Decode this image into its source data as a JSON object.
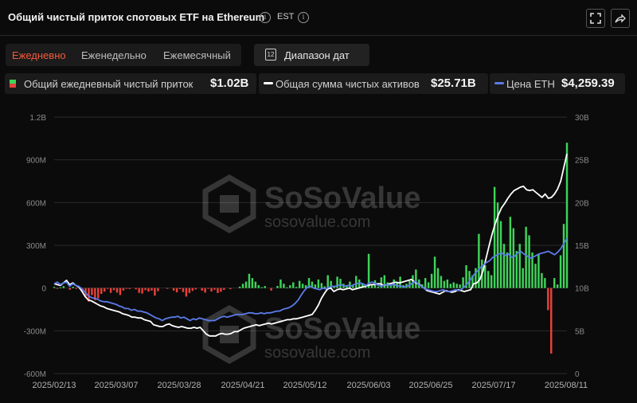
{
  "header": {
    "title": "Общий чистый приток спотовых ETF на Ethereum",
    "timezone": "EST",
    "info_icon": "info-icon",
    "fullscreen_icon": "fullscreen-icon",
    "share_icon": "share-icon"
  },
  "tabs": [
    {
      "label": "Ежедневно",
      "active": true
    },
    {
      "label": "Еженедельно",
      "active": false
    },
    {
      "label": "Ежемесячный",
      "active": false
    }
  ],
  "date_range": {
    "label": "Диапазон дат",
    "icon": "calendar-icon",
    "icon_text": "12"
  },
  "legend": [
    {
      "label": "Общий ежедневный чистый приток",
      "value": "$1.02B",
      "marker": "bar"
    },
    {
      "label": "Общая сумма чистых активов",
      "value": "$25.71B",
      "marker": "line",
      "color": "#ffffff"
    },
    {
      "label": "Цена ETH",
      "value": "$4,259.39",
      "marker": "line",
      "color": "#5b7be8"
    }
  ],
  "colors": {
    "positive": "#3fd35a",
    "negative": "#e8413b",
    "assets": "#ffffff",
    "price": "#5b7be8",
    "grid": "#2b2b2b"
  },
  "watermark": {
    "brand": "SoSoValue",
    "url": "sosovalue.com"
  },
  "chart_data": {
    "type": "bar",
    "x_tick_labels": [
      "2025/02/13",
      "2025/03/07",
      "2025/03/28",
      "2025/04/21",
      "2025/05/12",
      "2025/06/03",
      "2025/06/25",
      "2025/07/17",
      "2025/08/11"
    ],
    "y_left_ticks": [
      "1.2B",
      "900M",
      "600M",
      "300M",
      "0",
      "-300M",
      "-600M"
    ],
    "y_right_ticks": [
      "30B",
      "25B",
      "20B",
      "15B",
      "10B",
      "5B",
      "0"
    ],
    "ylim_left": [
      -600,
      1200
    ],
    "ylim_right": [
      0,
      30
    ],
    "units_left": "M USD",
    "units_right": "B USD",
    "series": [
      {
        "name": "Общий ежедневный чистый приток",
        "kind": "bar",
        "values": [
          8,
          -3,
          5,
          14,
          0,
          -12,
          9,
          -5,
          0,
          -27,
          -63,
          -95,
          -50,
          -85,
          -72,
          -41,
          -25,
          -5,
          -34,
          -15,
          -32,
          -49,
          -18,
          -5,
          -7,
          0,
          -9,
          -34,
          -39,
          -15,
          -25,
          -18,
          -53,
          -22,
          0,
          0,
          -4,
          0,
          -18,
          -30,
          -8,
          -28,
          -60,
          -35,
          -20,
          -10,
          0,
          -18,
          -32,
          -5,
          -24,
          -12,
          -35,
          -26,
          -13,
          0,
          -8,
          0,
          0,
          10,
          30,
          45,
          100,
          70,
          45,
          20,
          6,
          14,
          0,
          -18,
          0,
          15,
          60,
          30,
          5,
          20,
          40,
          8,
          50,
          30,
          20,
          70,
          45,
          25,
          60,
          35,
          12,
          90,
          50,
          10,
          80,
          65,
          30,
          15,
          45,
          20,
          85,
          60,
          35,
          15,
          240,
          20,
          55,
          10,
          75,
          90,
          40,
          15,
          60,
          40,
          80,
          20,
          30,
          50,
          90,
          130,
          60,
          25,
          70,
          40,
          100,
          220,
          140,
          85,
          50,
          60,
          30,
          40,
          30,
          25,
          75,
          160,
          120,
          90,
          140,
          380,
          200,
          160,
          120,
          90,
          710,
          600,
          470,
          310,
          250,
          500,
          420,
          260,
          310,
          140,
          430,
          370,
          250,
          170,
          240,
          105,
          70,
          -155,
          -460,
          70,
          25,
          230,
          450,
          1020
        ]
      },
      {
        "name": "Общая сумма чистых активов",
        "kind": "line",
        "values": [
          10.5,
          10.4,
          10.3,
          10.6,
          10.9,
          10.4,
          10.6,
          10.3,
          10.1,
          9.6,
          9.0,
          8.6,
          8.5,
          8.3,
          8.1,
          7.9,
          7.8,
          7.6,
          7.5,
          7.4,
          7.3,
          7.2,
          7.0,
          6.9,
          6.8,
          6.6,
          6.6,
          6.5,
          6.5,
          6.3,
          6.2,
          6.1,
          5.7,
          5.6,
          5.5,
          5.5,
          5.7,
          5.8,
          5.6,
          5.5,
          5.4,
          5.5,
          5.4,
          5.3,
          5.3,
          5.4,
          5.3,
          5.4,
          5.0,
          4.6,
          4.4,
          4.4,
          4.4,
          4.6,
          4.7,
          4.6,
          4.6,
          4.7,
          4.9,
          4.9,
          5.1,
          5.3,
          5.4,
          5.5,
          5.6,
          5.7,
          5.6,
          5.7,
          5.8,
          5.9,
          5.8,
          5.9,
          6.0,
          6.1,
          6.2,
          6.3,
          6.3,
          6.4,
          6.4,
          6.5,
          6.6,
          6.7,
          6.8,
          6.9,
          7.4,
          8.0,
          8.8,
          9.4,
          9.9,
          10.0,
          9.6,
          9.8,
          9.9,
          9.8,
          9.9,
          10.0,
          9.8,
          9.9,
          10.0,
          10.1,
          10.2,
          10.3,
          10.4,
          10.4,
          10.5,
          10.5,
          10.3,
          10.4,
          10.5,
          10.6,
          10.7,
          10.6,
          10.7,
          10.8,
          10.9,
          11.0,
          10.7,
          10.5,
          10.3,
          10.0,
          9.7,
          9.6,
          9.5,
          9.4,
          9.3,
          9.5,
          9.7,
          9.6,
          9.5,
          9.6,
          9.8,
          9.7,
          9.6,
          9.7,
          9.8,
          10.5,
          10.6,
          11.0,
          12.0,
          13.5,
          15.0,
          16.4,
          17.6,
          18.6,
          19.4,
          19.9,
          20.5,
          21.0,
          21.4,
          21.6,
          21.8,
          21.9,
          21.5,
          21.4,
          21.5,
          21.2,
          20.9,
          20.6,
          21.0,
          20.5,
          20.6,
          21.0,
          21.6,
          22.5,
          24.1,
          25.7
        ]
      },
      {
        "name": "Цена ETH",
        "kind": "line",
        "values": [
          10.5,
          10.7,
          10.4,
          10.6,
          10.7,
          10.2,
          10.5,
          10.3,
          10.2,
          9.9,
          9.5,
          9.1,
          8.9,
          8.8,
          8.7,
          8.5,
          8.4,
          8.4,
          8.3,
          8.2,
          8.1,
          7.9,
          7.8,
          7.6,
          7.6,
          7.4,
          7.5,
          7.3,
          7.3,
          7.2,
          7.1,
          6.9,
          6.7,
          6.5,
          6.4,
          6.2,
          6.4,
          6.5,
          6.6,
          6.6,
          6.7,
          6.5,
          6.6,
          6.4,
          6.2,
          6.4,
          6.3,
          6.5,
          6.4,
          6.3,
          6.2,
          6.2,
          6.2,
          6.4,
          6.6,
          6.7,
          6.6,
          6.7,
          6.8,
          6.9,
          6.9,
          6.9,
          7.0,
          7.1,
          7.1,
          7.0,
          7.0,
          7.1,
          7.0,
          7.1,
          7.1,
          7.2,
          7.3,
          7.3,
          7.5,
          7.6,
          7.7,
          7.9,
          8.2,
          8.6,
          9.2,
          9.7,
          10.1,
          10.2,
          10.0,
          9.9,
          9.8,
          10.0,
          9.9,
          10.1,
          10.2,
          10.2,
          10.3,
          10.4,
          10.2,
          10.3,
          10.2,
          10.4,
          10.5,
          10.6,
          10.5,
          10.3,
          10.6,
          10.7,
          10.5,
          10.3,
          10.2,
          10.4,
          10.4,
          10.3,
          10.5,
          10.2,
          10.3,
          10.1,
          10.2,
          10.3,
          10.6,
          10.8,
          10.4,
          10.2,
          9.9,
          9.8,
          9.7,
          9.6,
          9.6,
          9.7,
          9.8,
          9.6,
          9.6,
          9.7,
          9.8,
          9.7,
          9.9,
          10.2,
          10.6,
          11.1,
          11.6,
          12.0,
          12.4,
          12.7,
          13.0,
          13.2,
          13.6,
          13.8,
          14.0,
          14.1,
          13.8,
          14.0,
          13.6,
          13.7,
          14.1,
          14.3,
          14.0,
          13.8,
          13.5,
          13.6,
          13.8,
          14.0,
          14.1,
          14.2,
          14.3,
          14.1,
          13.9,
          14.2,
          14.6,
          15.2,
          15.8
        ]
      }
    ]
  }
}
